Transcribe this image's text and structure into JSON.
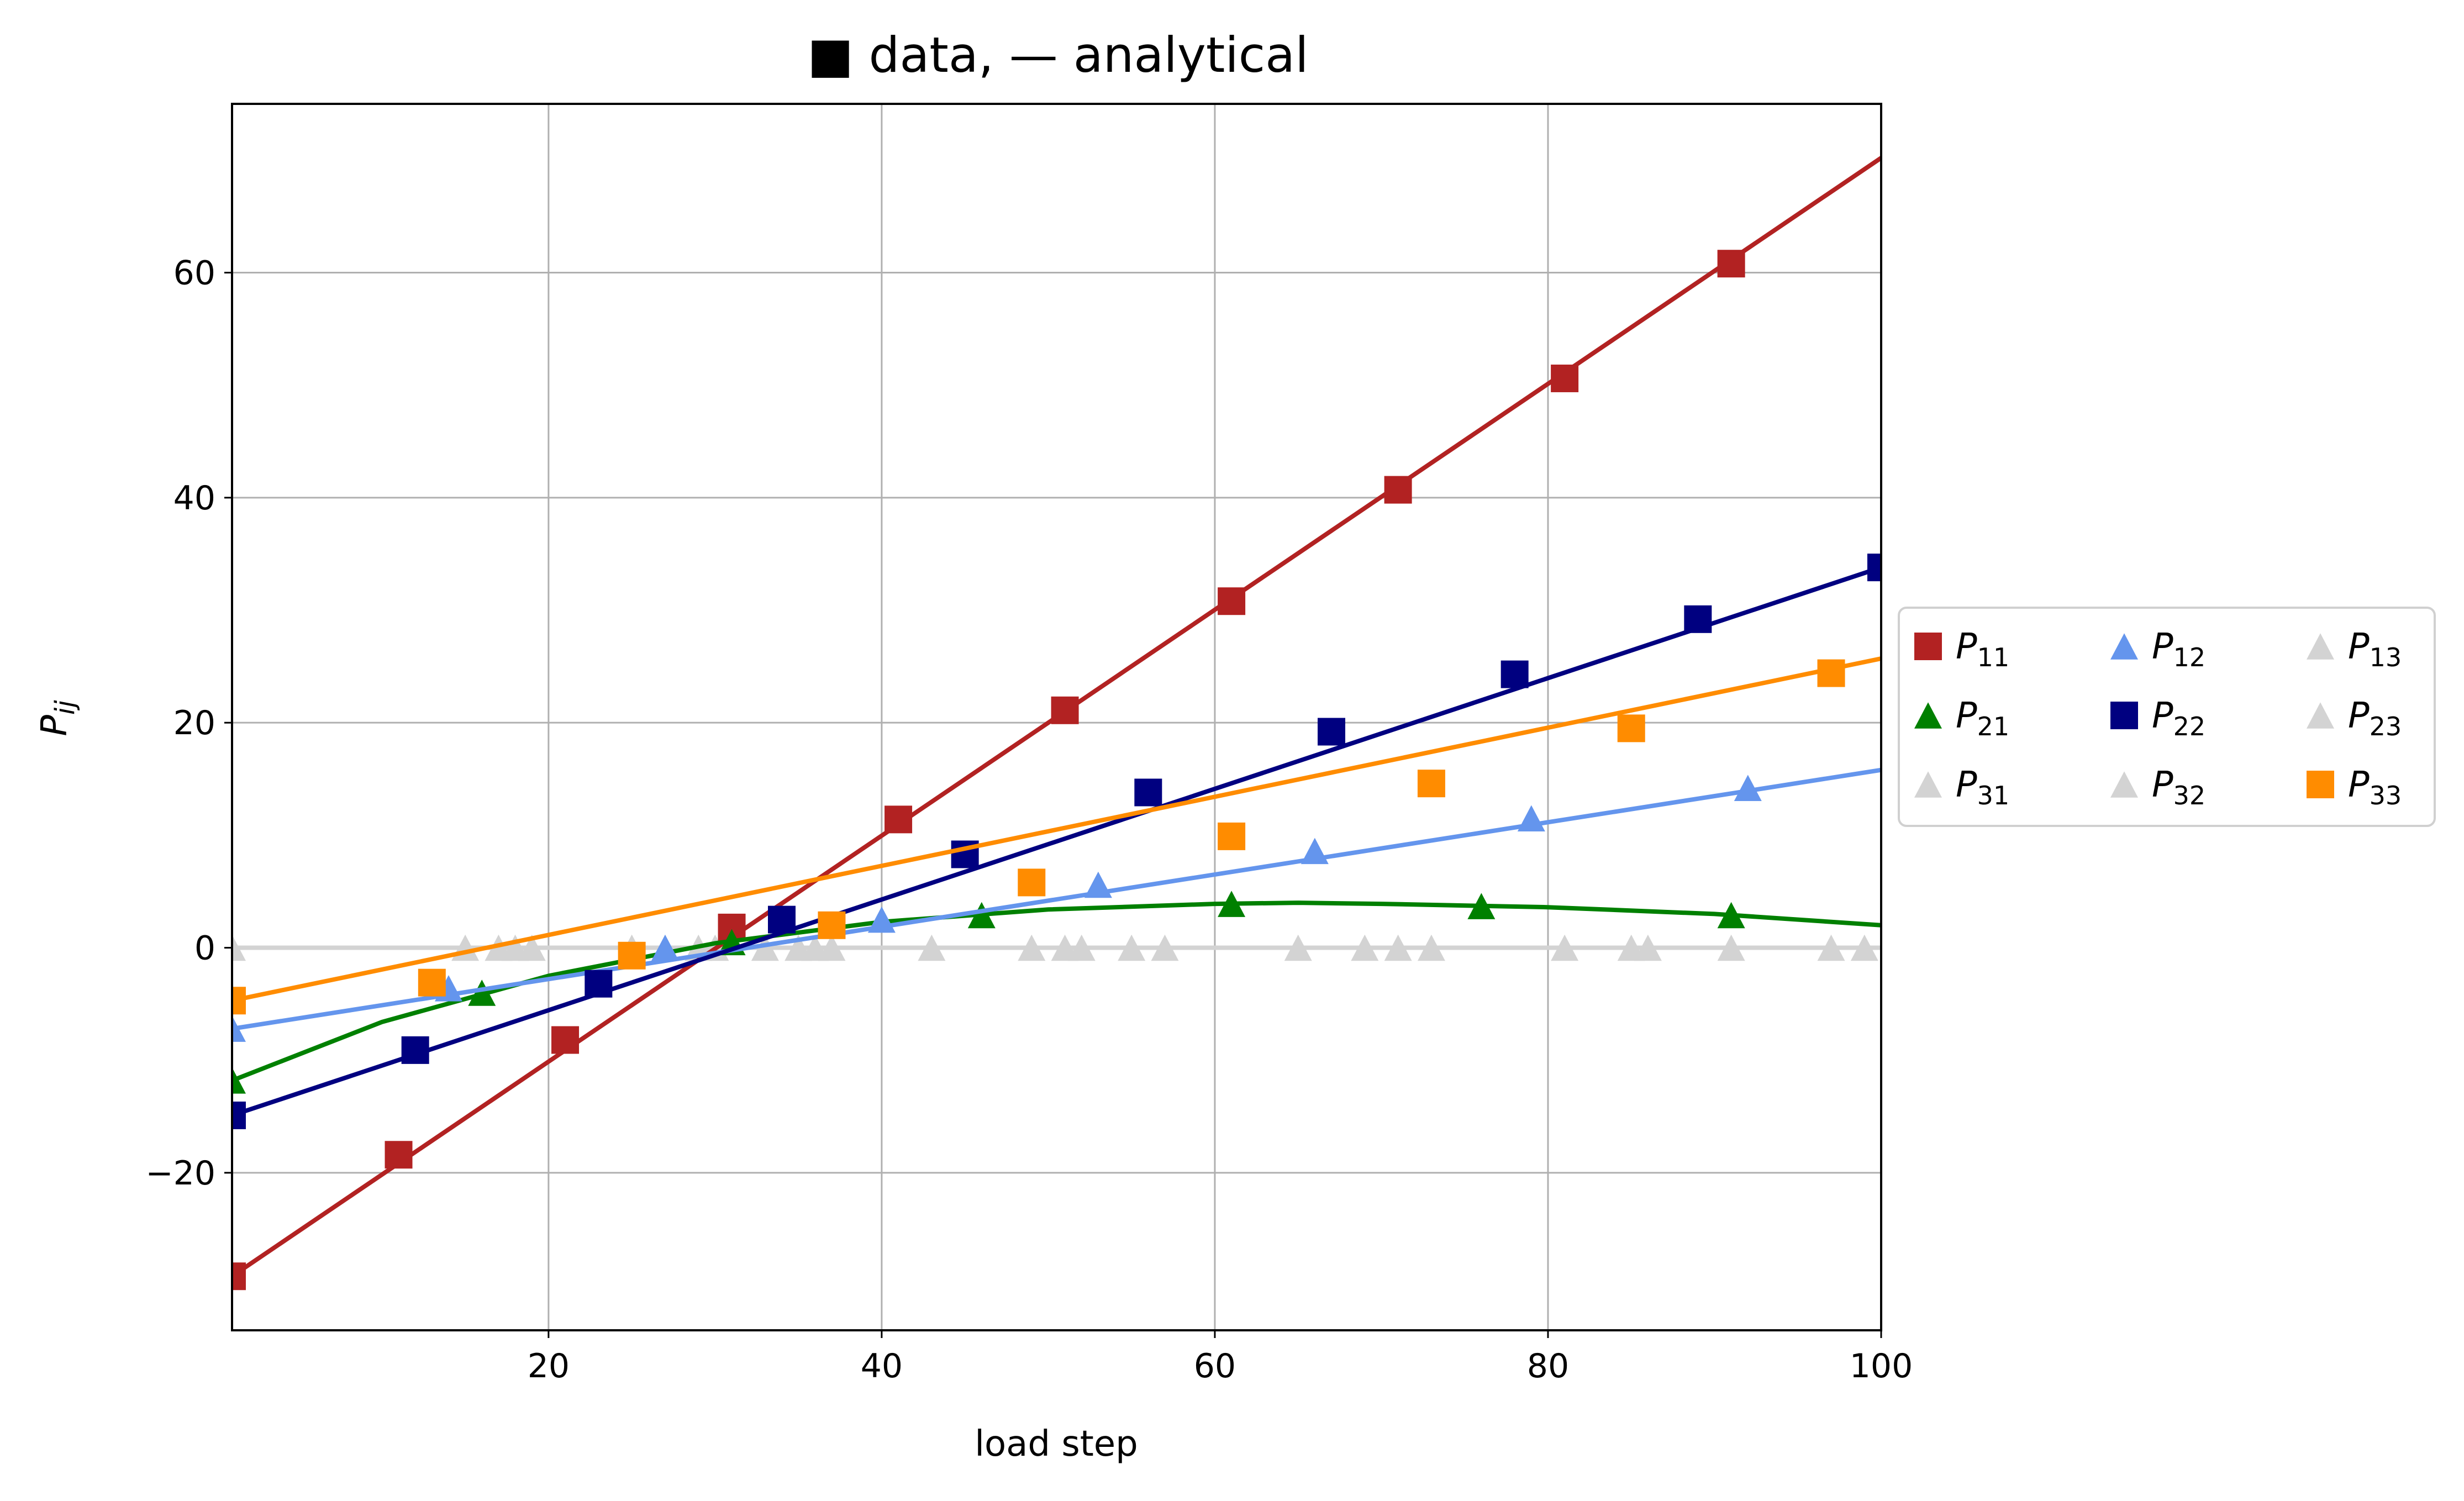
{
  "chart_data": {
    "type": "line",
    "title": "■ data, — analytical",
    "xlabel": "load step",
    "ylabel": "P_ij",
    "xlim": [
      1,
      100
    ],
    "ylim": [
      -34,
      75
    ],
    "xticks": [
      20,
      40,
      60,
      80,
      100
    ],
    "yticks": [
      -20,
      0,
      20,
      40,
      60
    ],
    "grid": true,
    "legend_position": "right, outside plot",
    "legend_columns": 3,
    "series": [
      {
        "name": "P_11",
        "color": "#b22222",
        "marker": "square",
        "line": [
          [
            1,
            -29.2
          ],
          [
            100,
            70.2
          ]
        ],
        "points": [
          [
            1,
            -29.2
          ],
          [
            11,
            -18.4
          ],
          [
            21,
            -8.2
          ],
          [
            31,
            1.8
          ],
          [
            41,
            11.4
          ],
          [
            51,
            21.1
          ],
          [
            61,
            30.8
          ],
          [
            71,
            40.7
          ],
          [
            81,
            50.6
          ],
          [
            91,
            60.8
          ]
        ]
      },
      {
        "name": "P_21",
        "color": "#008000",
        "marker": "triangle",
        "line": [
          [
            1,
            -11.8
          ],
          [
            10,
            -6.6
          ],
          [
            20,
            -2.5
          ],
          [
            30,
            0.4
          ],
          [
            40,
            2.3
          ],
          [
            50,
            3.4
          ],
          [
            60,
            3.9
          ],
          [
            65,
            4.0
          ],
          [
            70,
            3.9
          ],
          [
            80,
            3.6
          ],
          [
            90,
            3.0
          ],
          [
            100,
            2.0
          ]
        ],
        "points": [
          [
            1,
            -11.8
          ],
          [
            16,
            -4.0
          ],
          [
            31,
            0.5
          ],
          [
            46,
            2.9
          ],
          [
            61,
            3.9
          ],
          [
            76,
            3.7
          ],
          [
            91,
            2.9
          ]
        ]
      },
      {
        "name": "P_31",
        "color": "#d3d3d3",
        "marker": "triangle",
        "line": [
          [
            1,
            0
          ],
          [
            100,
            0
          ]
        ],
        "points": [
          [
            1,
            0
          ],
          [
            15,
            0
          ],
          [
            17,
            0
          ],
          [
            25,
            0
          ],
          [
            33,
            0
          ],
          [
            35,
            0
          ],
          [
            49,
            0
          ],
          [
            55,
            0
          ],
          [
            65,
            0
          ],
          [
            71,
            0
          ],
          [
            85,
            0
          ],
          [
            91,
            0
          ],
          [
            97,
            0
          ],
          [
            99,
            0
          ]
        ]
      },
      {
        "name": "P_12",
        "color": "#6495ed",
        "marker": "triangle",
        "line": [
          [
            1,
            -7.2
          ],
          [
            100,
            15.8
          ]
        ],
        "points": [
          [
            1,
            -7.2
          ],
          [
            14,
            -3.6
          ],
          [
            27,
            0
          ],
          [
            40,
            2.5
          ],
          [
            53,
            5.6
          ],
          [
            66,
            8.6
          ],
          [
            79,
            11.5
          ],
          [
            92,
            14.2
          ]
        ]
      },
      {
        "name": "P_22",
        "color": "#000080",
        "marker": "square",
        "line": [
          [
            1,
            -14.9
          ],
          [
            100,
            33.8
          ]
        ],
        "points": [
          [
            1,
            -14.9
          ],
          [
            12,
            -9.1
          ],
          [
            23,
            -3.2
          ],
          [
            34,
            2.5
          ],
          [
            45,
            8.3
          ],
          [
            56,
            13.8
          ],
          [
            67,
            19.2
          ],
          [
            78,
            24.3
          ],
          [
            89,
            29.2
          ],
          [
            100,
            33.8
          ]
        ]
      },
      {
        "name": "P_32",
        "color": "#d3d3d3",
        "marker": "triangle",
        "line": [
          [
            1,
            0
          ],
          [
            100,
            0
          ]
        ],
        "points": [
          [
            18,
            0
          ],
          [
            30,
            0
          ],
          [
            36,
            0
          ],
          [
            43,
            0
          ],
          [
            52,
            0
          ],
          [
            57,
            0
          ],
          [
            69,
            0
          ],
          [
            73,
            0
          ],
          [
            86,
            0
          ]
        ]
      },
      {
        "name": "P_13",
        "color": "#d3d3d3",
        "marker": "triangle",
        "line": [
          [
            1,
            0
          ],
          [
            100,
            0
          ]
        ],
        "points": [
          [
            19,
            0
          ],
          [
            29,
            0
          ],
          [
            37,
            0
          ],
          [
            51,
            0
          ],
          [
            81,
            0
          ]
        ]
      },
      {
        "name": "P_23",
        "color": "#d3d3d3",
        "marker": "triangle",
        "line": [
          [
            1,
            0
          ],
          [
            100,
            0
          ]
        ],
        "points": [
          [
            25,
            0
          ]
        ]
      },
      {
        "name": "P_33",
        "color": "#ff8c00",
        "marker": "square",
        "line": [
          [
            1,
            -4.7
          ],
          [
            100,
            25.7
          ]
        ],
        "points": [
          [
            1,
            -4.7
          ],
          [
            13,
            -3.1
          ],
          [
            25,
            -0.7
          ],
          [
            37,
            2.0
          ],
          [
            49,
            5.8
          ],
          [
            61,
            9.9
          ],
          [
            73,
            14.6
          ],
          [
            85,
            19.5
          ],
          [
            97,
            24.4
          ]
        ]
      }
    ],
    "legend": [
      {
        "base": "P",
        "sub": "11",
        "series": 0
      },
      {
        "base": "P",
        "sub": "12",
        "series": 3
      },
      {
        "base": "P",
        "sub": "13",
        "series": 6
      },
      {
        "base": "P",
        "sub": "21",
        "series": 1
      },
      {
        "base": "P",
        "sub": "22",
        "series": 4
      },
      {
        "base": "P",
        "sub": "23",
        "series": 7
      },
      {
        "base": "P",
        "sub": "31",
        "series": 2
      },
      {
        "base": "P",
        "sub": "32",
        "series": 5
      },
      {
        "base": "P",
        "sub": "33",
        "series": 8
      }
    ]
  }
}
